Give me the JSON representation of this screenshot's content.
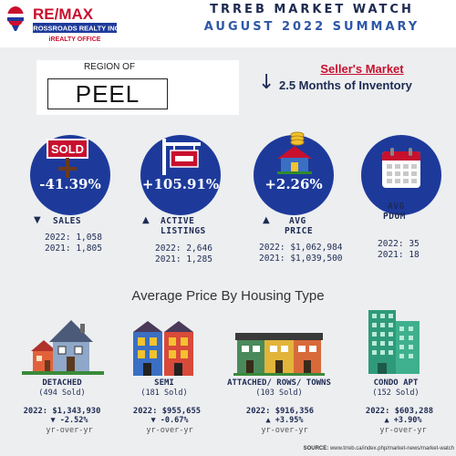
{
  "brand": {
    "logo_text": "RE/MAX",
    "company": "CROSSROADS REALTY INC.",
    "office_type": "iREALTY OFFICE",
    "colors": {
      "red": "#c8102e",
      "blue": "#1d3a9b",
      "navy": "#1e2a52"
    }
  },
  "header": {
    "title_line1": "TRREB MARKET WATCH",
    "title_line2": "AUGUST 2022 SUMMARY"
  },
  "region": {
    "label": "REGION OF",
    "name": "PEEL"
  },
  "market": {
    "trend_icon": "arrow-down-icon",
    "type": "Seller's Market",
    "inventory": "2.5 Months of Inventory"
  },
  "stats": [
    {
      "id": "sales",
      "icon": "sold-sign-icon",
      "pct": "-41.39%",
      "direction": "down",
      "label_lines": [
        "SALES"
      ],
      "line_2022": "2022: 1,058",
      "line_2021": "2021: 1,805"
    },
    {
      "id": "active-listings",
      "icon": "for-sale-sign-icon",
      "pct": "+105.91%",
      "direction": "up",
      "label_lines": [
        "ACTIVE",
        "LISTINGS"
      ],
      "line_2022": "2022: 2,646",
      "line_2021": "2021: 1,285"
    },
    {
      "id": "avg-price",
      "icon": "house-coins-icon",
      "pct": "+2.26%",
      "direction": "up",
      "label_lines": [
        "AVG",
        "PRICE"
      ],
      "line_2022": "2022: $1,062,984",
      "line_2021": "2021: $1,039,500"
    },
    {
      "id": "avg-pdom",
      "icon": "calendar-icon",
      "pct": "",
      "direction": "",
      "label_lines": [
        "AVG",
        "PDOM"
      ],
      "line_2022": "2022: 35",
      "line_2021": "2021: 18"
    }
  ],
  "housing": {
    "title": "Average Price By Housing Type",
    "types": [
      {
        "id": "detached",
        "icon": "detached-house-icon",
        "name": "DETACHED",
        "sold": "(494 Sold)",
        "price": "2022: $1,343,930",
        "change": "-2.52%",
        "direction": "down",
        "yoy": "yr-over-yr"
      },
      {
        "id": "semi",
        "icon": "semi-house-icon",
        "name": "SEMI",
        "sold": "(181 Sold)",
        "price": "2022: $955,655",
        "change": "-0.67%",
        "direction": "down",
        "yoy": "yr-over-yr"
      },
      {
        "id": "attached",
        "icon": "townhouse-icon",
        "name": "ATTACHED/ ROWS/ TOWNS",
        "sold": "(103 Sold)",
        "price": "2022: $916,356",
        "change": "+3.95%",
        "direction": "up",
        "yoy": "yr-over-yr"
      },
      {
        "id": "condo",
        "icon": "condo-tower-icon",
        "name": "CONDO APT",
        "sold": "(152 Sold)",
        "price": "2022: $603,288",
        "change": "+3.90%",
        "direction": "up",
        "yoy": "yr-over-yr"
      }
    ]
  },
  "footer": {
    "source_label": "SOURCE:",
    "source_url": "www.trreb.ca/index.php/market-news/market-watch"
  }
}
